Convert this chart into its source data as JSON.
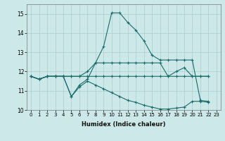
{
  "xlabel": "Humidex (Indice chaleur)",
  "ylabel": "",
  "bg_color": "#cce8e8",
  "grid_color": "#aacece",
  "line_color": "#1a6b6b",
  "marker": "+",
  "xlim": [
    -0.5,
    23.5
  ],
  "ylim": [
    10.0,
    15.5
  ],
  "yticks": [
    10,
    11,
    12,
    13,
    14,
    15
  ],
  "xticks": [
    0,
    1,
    2,
    3,
    4,
    5,
    6,
    7,
    8,
    9,
    10,
    11,
    12,
    13,
    14,
    15,
    16,
    17,
    18,
    19,
    20,
    21,
    22,
    23
  ],
  "lines": [
    {
      "x": [
        0,
        1,
        2,
        3,
        4,
        5,
        6,
        7,
        8,
        9,
        10,
        11,
        12,
        13,
        14,
        15,
        16,
        17,
        18,
        19,
        20,
        21,
        22
      ],
      "y": [
        11.75,
        11.6,
        11.75,
        11.75,
        11.75,
        10.7,
        11.3,
        11.6,
        12.45,
        13.3,
        15.05,
        15.05,
        14.55,
        14.15,
        13.6,
        12.85,
        12.6,
        12.6,
        12.6,
        12.6,
        12.6,
        10.5,
        10.45
      ]
    },
    {
      "x": [
        0,
        1,
        2,
        3,
        4,
        5,
        6,
        7,
        8,
        9,
        10,
        11,
        12,
        13,
        14,
        15,
        16,
        17,
        18,
        19,
        20,
        21,
        22
      ],
      "y": [
        11.75,
        11.6,
        11.75,
        11.75,
        11.75,
        11.75,
        11.75,
        12.0,
        12.45,
        12.45,
        12.45,
        12.45,
        12.45,
        12.45,
        12.45,
        12.45,
        12.45,
        11.75,
        12.0,
        12.2,
        11.75,
        11.75,
        11.75
      ]
    },
    {
      "x": [
        0,
        1,
        2,
        3,
        4,
        5,
        6,
        7,
        8,
        9,
        10,
        11,
        12,
        13,
        14,
        15,
        16,
        17,
        18,
        19,
        20,
        21,
        22
      ],
      "y": [
        11.75,
        11.6,
        11.75,
        11.75,
        11.75,
        11.75,
        11.75,
        11.75,
        11.75,
        11.75,
        11.75,
        11.75,
        11.75,
        11.75,
        11.75,
        11.75,
        11.75,
        11.75,
        11.75,
        11.75,
        11.75,
        11.75,
        11.75
      ]
    },
    {
      "x": [
        0,
        1,
        2,
        3,
        4,
        5,
        6,
        7,
        8,
        9,
        10,
        11,
        12,
        13,
        14,
        15,
        16,
        17,
        18,
        19,
        20,
        21,
        22
      ],
      "y": [
        11.75,
        11.6,
        11.75,
        11.75,
        11.75,
        10.7,
        11.2,
        11.5,
        11.3,
        11.1,
        10.9,
        10.7,
        10.5,
        10.4,
        10.25,
        10.15,
        10.05,
        10.05,
        10.1,
        10.15,
        10.45,
        10.45,
        10.4
      ]
    }
  ]
}
